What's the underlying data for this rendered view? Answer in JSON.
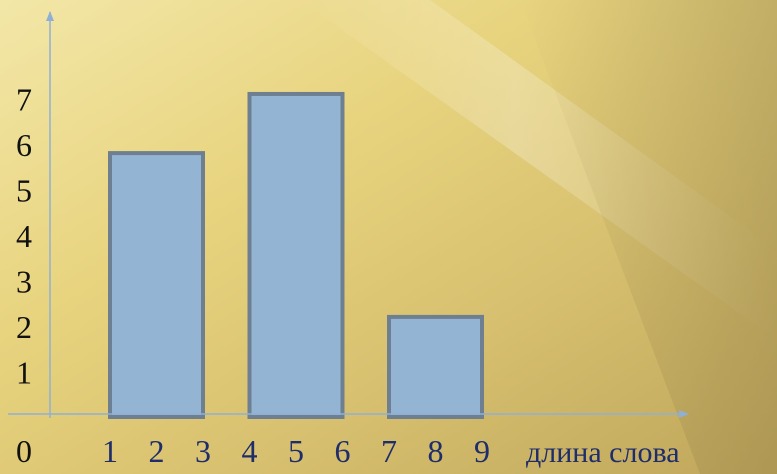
{
  "chart_data": {
    "type": "bar",
    "bins": [
      {
        "x_start": 1,
        "x_end": 3,
        "value": 5.8
      },
      {
        "x_start": 4,
        "x_end": 6,
        "value": 7.1
      },
      {
        "x_start": 7,
        "x_end": 9,
        "value": 2.2
      }
    ],
    "x_ticks": [
      "1",
      "2",
      "3",
      "4",
      "5",
      "6",
      "7",
      "8",
      "9"
    ],
    "y_ticks": [
      "0",
      "1",
      "2",
      "3",
      "4",
      "5",
      "6",
      "7"
    ],
    "xlabel": "длина слова",
    "ylabel": "",
    "title": "",
    "ylim": [
      0,
      7
    ],
    "grid": false,
    "colors": {
      "bar_fill": "#94b4d3",
      "bar_stroke": "#6d7f91",
      "axis": "#8fb0d4",
      "text": "#1f2d6b"
    }
  }
}
